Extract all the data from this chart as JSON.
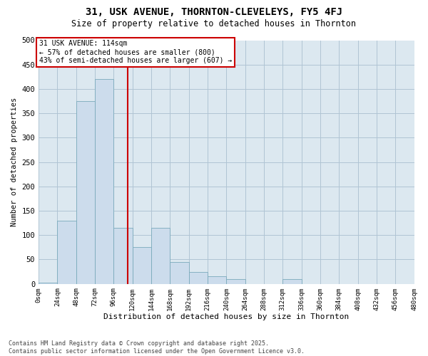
{
  "title": "31, USK AVENUE, THORNTON-CLEVELEYS, FY5 4FJ",
  "subtitle": "Size of property relative to detached houses in Thornton",
  "xlabel": "Distribution of detached houses by size in Thornton",
  "ylabel": "Number of detached properties",
  "bar_color": "#ccdcec",
  "bar_edge_color": "#7aaabb",
  "grid_color": "#b0c4d4",
  "background_color": "#dce8f0",
  "property_line_x": 114,
  "property_line_color": "#cc0000",
  "annotation_text": "31 USK AVENUE: 114sqm\n← 57% of detached houses are smaller (800)\n43% of semi-detached houses are larger (607) →",
  "annotation_box_color": "#cc0000",
  "bin_edges": [
    0,
    24,
    48,
    72,
    96,
    120,
    144,
    168,
    192,
    216,
    240,
    264,
    288,
    312,
    336,
    360,
    384,
    408,
    432,
    456,
    480
  ],
  "bar_heights": [
    2,
    130,
    375,
    420,
    115,
    75,
    115,
    45,
    25,
    15,
    10,
    0,
    0,
    10,
    0,
    0,
    0,
    0,
    0,
    0
  ],
  "ylim": [
    0,
    500
  ],
  "yticks": [
    0,
    50,
    100,
    150,
    200,
    250,
    300,
    350,
    400,
    450,
    500
  ],
  "footer_text": "Contains HM Land Registry data © Crown copyright and database right 2025.\nContains public sector information licensed under the Open Government Licence v3.0.",
  "fig_width": 6.0,
  "fig_height": 5.0,
  "dpi": 100
}
